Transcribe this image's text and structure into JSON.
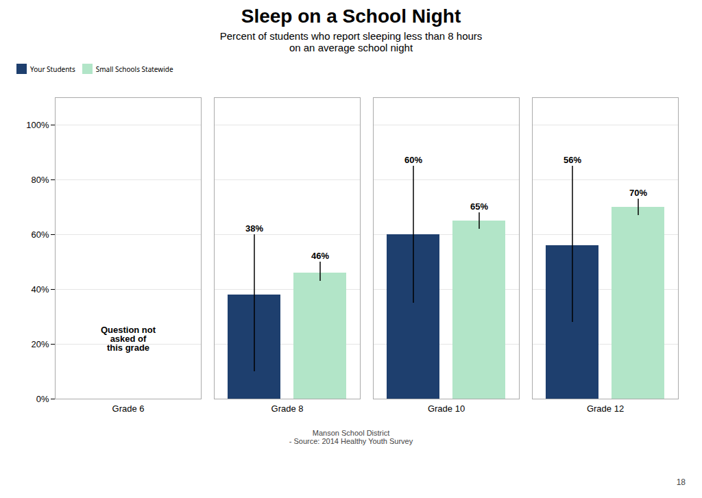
{
  "chart_data": {
    "type": "bar",
    "title": "Sleep on a School Night",
    "subtitle": "Percent of students who report sleeping less than 8 hours\non an average school night",
    "categories": [
      "Grade 6",
      "Grade 8",
      "Grade 10",
      "Grade 12"
    ],
    "series": [
      {
        "name": "Your Students",
        "color": "#1e3f6e",
        "values": [
          null,
          38,
          60,
          56
        ],
        "value_labels": [
          null,
          "38%",
          "60%",
          "56%"
        ],
        "error_low": [
          null,
          10,
          35,
          28
        ],
        "error_high": [
          null,
          60,
          85,
          85
        ]
      },
      {
        "name": "Small Schools Statewide",
        "color": "#b2e5c8",
        "values": [
          null,
          46,
          65,
          70
        ],
        "value_labels": [
          null,
          "46%",
          "65%",
          "70%"
        ],
        "error_low": [
          null,
          43,
          62,
          67
        ],
        "error_high": [
          null,
          50,
          68,
          73
        ]
      }
    ],
    "ylim": [
      0,
      110
    ],
    "yticks": [
      {
        "value": 0,
        "label": "0%"
      },
      {
        "value": 20,
        "label": "20%"
      },
      {
        "value": 40,
        "label": "40%"
      },
      {
        "value": 60,
        "label": "60%"
      },
      {
        "value": 80,
        "label": "80%"
      },
      {
        "value": 100,
        "label": "100%"
      }
    ],
    "grid": true,
    "legend": "top",
    "data_labels": true,
    "annotations": [
      {
        "text": "Question not\nasked of\nthis grade",
        "category": "Grade 6"
      }
    ],
    "caption": "Manson School District\n- Source: 2014 Healthy Youth Survey",
    "page_number": "18"
  }
}
